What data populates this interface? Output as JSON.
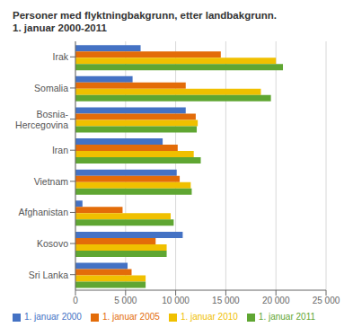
{
  "chart_data": {
    "type": "bar",
    "orientation": "horizontal",
    "title": "Personer med flyktningbakgrunn, etter landbakgrunn.",
    "subtitle": "1. januar 2000-2011",
    "categories": [
      "Irak",
      "Somalia",
      "Bosnia-\nHercegovina",
      "Iran",
      "Vietnam",
      "Afghanistan",
      "Kosovo",
      "Sri Lanka"
    ],
    "series": [
      {
        "name": "1. januar 2000",
        "color": "#4472c4",
        "values": [
          6500,
          5700,
          11000,
          8700,
          10100,
          700,
          10700,
          5200
        ]
      },
      {
        "name": "1. januar 2005",
        "color": "#e36c09",
        "values": [
          14500,
          11000,
          12000,
          10200,
          10400,
          4700,
          8000,
          5600
        ]
      },
      {
        "name": "1. januar 2010",
        "color": "#f0c000",
        "values": [
          20000,
          18500,
          12200,
          11800,
          11500,
          9500,
          9100,
          7000
        ]
      },
      {
        "name": "1. januar 2011",
        "color": "#5fa632",
        "values": [
          20700,
          19500,
          12100,
          12500,
          11600,
          9800,
          9100,
          7000
        ]
      }
    ],
    "xlim": [
      0,
      25000
    ],
    "xticks": [
      0,
      {
        "value": 5000,
        "label": "5 000"
      },
      {
        "value": 10000,
        "label": "10 000"
      },
      {
        "value": 15000,
        "label": "15 000"
      },
      {
        "value": 20000,
        "label": "20 000"
      },
      {
        "value": 25000,
        "label": "25 000"
      }
    ],
    "grid": true,
    "legend": "bottom"
  }
}
